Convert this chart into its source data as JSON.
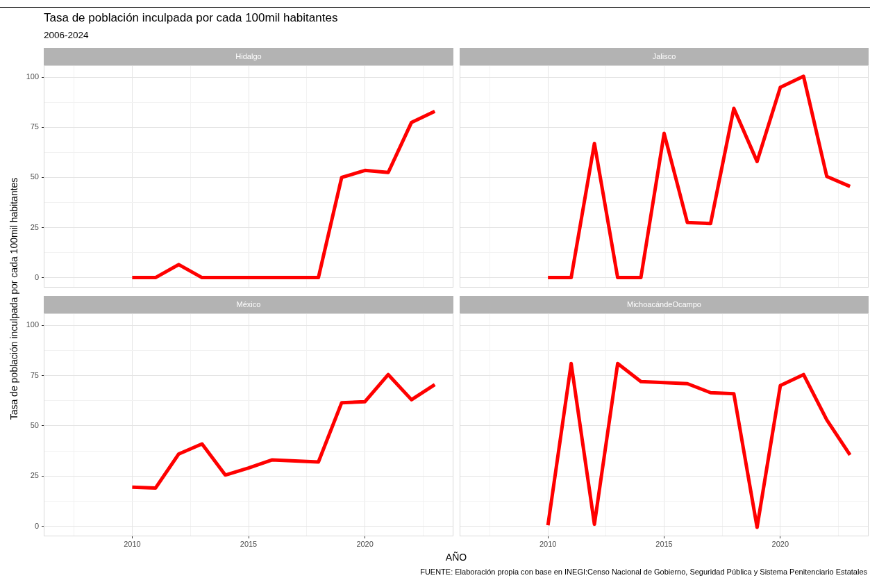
{
  "chart_data": [
    {
      "type": "other",
      "title": "Tasa de población inculpada por cada 100mil habitantes",
      "subtitle": "2006-2024",
      "xlabel": "AÑO",
      "ylabel": "Tasa de población inculpada por cada 100mil habitantes",
      "annotations": [
        "FUENTE: Elaboración propia con base en INEGI:Censo Nacional de Gobierno, Seguridad Pública y Sistema Penitenciario Estatales"
      ]
    },
    {
      "type": "line",
      "title": "Hidalgo",
      "x": [
        2010,
        2011,
        2012,
        2013,
        2014,
        2015,
        2016,
        2017,
        2018,
        2019,
        2020,
        2021,
        2022,
        2023
      ],
      "series": [
        {
          "color": "#ff0000",
          "values": [
            0,
            0,
            6.5,
            0,
            0,
            0,
            0,
            0,
            0,
            50,
            53.5,
            52.5,
            77.5,
            83
          ]
        }
      ],
      "xlim": [
        2006.2,
        2023.8
      ],
      "xticks": [
        {
          "value": 2007.5,
          "label": null
        },
        2010,
        {
          "value": 2012.5,
          "label": null
        },
        2015,
        {
          "value": 2017.5,
          "label": null
        },
        2020,
        {
          "value": 2022.5,
          "label": null
        }
      ],
      "ylim": [
        -5,
        106
      ],
      "yticks": [
        0,
        {
          "value": 12.5,
          "label": null
        },
        25,
        {
          "value": 37.5,
          "label": null
        },
        50,
        {
          "value": 62.5,
          "label": null
        },
        75,
        {
          "value": 87.5,
          "label": null
        },
        100
      ],
      "grid": true,
      "legend": false,
      "tick_labels": "y"
    },
    {
      "type": "line",
      "title": "Jalisco",
      "x": [
        2010,
        2011,
        2012,
        2013,
        2014,
        2015,
        2016,
        2017,
        2018,
        2019,
        2020,
        2021,
        2022,
        2023
      ],
      "series": [
        {
          "color": "#ff0000",
          "values": [
            0,
            0,
            67,
            0,
            0,
            72,
            27.5,
            27,
            84.5,
            58,
            95,
            100.5,
            50.5,
            45.5
          ]
        }
      ],
      "xlim": [
        2006.2,
        2023.8
      ],
      "xticks": [
        {
          "value": 2007.5,
          "label": null
        },
        2010,
        {
          "value": 2012.5,
          "label": null
        },
        2015,
        {
          "value": 2017.5,
          "label": null
        },
        2020,
        {
          "value": 2022.5,
          "label": null
        }
      ],
      "ylim": [
        -5,
        106
      ],
      "yticks": [
        0,
        {
          "value": 12.5,
          "label": null
        },
        25,
        {
          "value": 37.5,
          "label": null
        },
        50,
        {
          "value": 62.5,
          "label": null
        },
        75,
        {
          "value": 87.5,
          "label": null
        },
        100
      ],
      "grid": true,
      "legend": false,
      "tick_labels": false
    },
    {
      "type": "line",
      "title": "México",
      "x": [
        2010,
        2011,
        2012,
        2013,
        2014,
        2015,
        2016,
        2017,
        2018,
        2019,
        2020,
        2021,
        2022,
        2023
      ],
      "series": [
        {
          "color": "#ff0000",
          "values": [
            19.5,
            19,
            36,
            41,
            25.5,
            29,
            33,
            32.5,
            32,
            61.5,
            62,
            75.5,
            63,
            70.5
          ]
        }
      ],
      "xlim": [
        2006.2,
        2023.8
      ],
      "xticks": [
        {
          "value": 2007.5,
          "label": null
        },
        2010,
        {
          "value": 2012.5,
          "label": null
        },
        2015,
        {
          "value": 2017.5,
          "label": null
        },
        2020,
        {
          "value": 2022.5,
          "label": null
        }
      ],
      "ylim": [
        -5,
        106
      ],
      "yticks": [
        0,
        {
          "value": 12.5,
          "label": null
        },
        25,
        {
          "value": 37.5,
          "label": null
        },
        50,
        {
          "value": 62.5,
          "label": null
        },
        75,
        {
          "value": 87.5,
          "label": null
        },
        100
      ],
      "grid": true,
      "legend": false
    },
    {
      "type": "line",
      "title": "MichoacándeOcampo",
      "x": [
        2010,
        2011,
        2012,
        2013,
        2014,
        2015,
        2016,
        2017,
        2018,
        2019,
        2020,
        2021,
        2022,
        2023
      ],
      "series": [
        {
          "color": "#ff0000",
          "values": [
            0.5,
            81,
            1,
            81,
            72,
            71.5,
            71,
            66.5,
            66,
            -0.5,
            70,
            75.5,
            53,
            35.5
          ]
        }
      ],
      "xlim": [
        2006.2,
        2023.8
      ],
      "xticks": [
        {
          "value": 2007.5,
          "label": null
        },
        2010,
        {
          "value": 2012.5,
          "label": null
        },
        2015,
        {
          "value": 2017.5,
          "label": null
        },
        2020,
        {
          "value": 2022.5,
          "label": null
        }
      ],
      "ylim": [
        -5,
        106
      ],
      "yticks": [
        0,
        {
          "value": 12.5,
          "label": null
        },
        25,
        {
          "value": 37.5,
          "label": null
        },
        50,
        {
          "value": 62.5,
          "label": null
        },
        75,
        {
          "value": 87.5,
          "label": null
        },
        100
      ],
      "grid": true,
      "legend": false,
      "tick_labels": "x"
    }
  ]
}
